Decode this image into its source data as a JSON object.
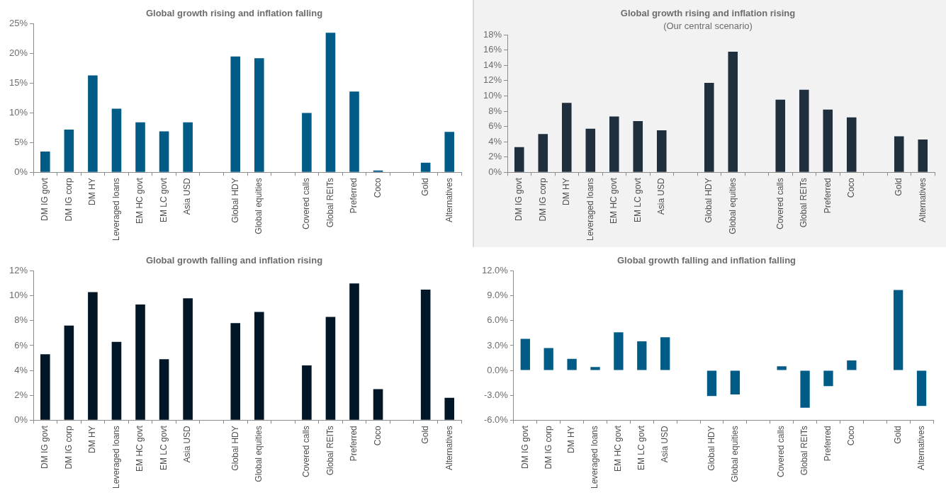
{
  "chart_data": [
    {
      "type": "bar",
      "title": "Global growth rising and inflation falling",
      "categories": [
        "DM IG govt",
        "DM IG corp",
        "DM HY",
        "Leveraged loans",
        "EM HC govt",
        "EM LC govt",
        "Asia USD",
        null,
        "Global HDY",
        "Global equities",
        null,
        "Covered calls",
        "Global REITs",
        "Preferred",
        "Coco",
        null,
        "Gold",
        "Alternatives"
      ],
      "values": [
        3.5,
        7.2,
        16.3,
        10.7,
        8.4,
        6.9,
        8.4,
        null,
        19.5,
        19.2,
        null,
        10.0,
        23.5,
        13.6,
        0.3,
        null,
        1.6,
        6.8
      ],
      "color": "#005b87",
      "ylim": [
        0,
        25
      ],
      "yticks": [
        {
          "value": 0,
          "label": "0%"
        },
        {
          "value": 5,
          "label": "5%"
        },
        {
          "value": 10,
          "label": "10%"
        },
        {
          "value": 15,
          "label": "15%"
        },
        {
          "value": 20,
          "label": "20%"
        },
        {
          "value": 25,
          "label": "25%"
        }
      ],
      "grid": false,
      "legend": false
    },
    {
      "type": "bar",
      "title": "Global growth rising and inflation rising",
      "subtitle": "(Our central scenario)",
      "categories": [
        "DM IG govt",
        "DM IG corp",
        "DM HY",
        "Leveraged loans",
        "EM HC govt",
        "EM LC govt",
        "Asia USD",
        null,
        "Global HDY",
        "Global equities",
        null,
        "Covered calls",
        "Global REITs",
        "Preferred",
        "Coco",
        null,
        "Gold",
        "Alternatives"
      ],
      "values": [
        3.3,
        5.0,
        9.1,
        5.7,
        7.3,
        6.7,
        5.5,
        null,
        11.7,
        15.8,
        null,
        9.5,
        10.8,
        8.2,
        7.2,
        null,
        4.7,
        4.3
      ],
      "color": "#1f2f3d",
      "ylim": [
        0,
        18
      ],
      "yticks": [
        {
          "value": 0,
          "label": "0%"
        },
        {
          "value": 2,
          "label": "2%"
        },
        {
          "value": 4,
          "label": "4%"
        },
        {
          "value": 6,
          "label": "6%"
        },
        {
          "value": 8,
          "label": "8%"
        },
        {
          "value": 10,
          "label": "10%"
        },
        {
          "value": 12,
          "label": "12%"
        },
        {
          "value": 14,
          "label": "14%"
        },
        {
          "value": 16,
          "label": "16%"
        },
        {
          "value": 18,
          "label": "18%"
        }
      ],
      "grid": false,
      "legend": false
    },
    {
      "type": "bar",
      "title": "Global growth falling and inflation rising",
      "categories": [
        "DM IG govt",
        "DM IG corp",
        "DM HY",
        "Leveraged loans",
        "EM HC govt",
        "EM LC govt",
        "Asia USD",
        null,
        "Global HDY",
        "Global equities",
        null,
        "Covered calls",
        "Global REITs",
        "Preferred",
        "Coco",
        null,
        "Gold",
        "Alternatives"
      ],
      "values": [
        5.3,
        7.6,
        10.3,
        6.3,
        9.3,
        4.9,
        9.8,
        null,
        7.8,
        8.7,
        null,
        4.4,
        8.3,
        11.0,
        2.5,
        null,
        10.5,
        1.8
      ],
      "color": "#011627",
      "ylim": [
        0,
        12
      ],
      "yticks": [
        {
          "value": 0,
          "label": "0%"
        },
        {
          "value": 2,
          "label": "2%"
        },
        {
          "value": 4,
          "label": "4%"
        },
        {
          "value": 6,
          "label": "6%"
        },
        {
          "value": 8,
          "label": "8%"
        },
        {
          "value": 10,
          "label": "10%"
        },
        {
          "value": 12,
          "label": "12%"
        }
      ],
      "grid": false,
      "legend": false
    },
    {
      "type": "bar",
      "title": "Global growth falling and inflation falling",
      "categories": [
        "DM IG govt",
        "DM IG corp",
        "DM HY",
        "Leveraged loans",
        "EM HC govt",
        "EM LC govt",
        "Asia USD",
        null,
        "Global HDY",
        "Global equities",
        null,
        "Covered calls",
        "Global REITs",
        "Preferred",
        "Coco",
        null,
        "Gold",
        "Alternatives"
      ],
      "values": [
        3.8,
        2.7,
        1.4,
        0.4,
        4.6,
        3.5,
        4.0,
        null,
        -3.1,
        -2.9,
        null,
        0.5,
        -4.5,
        -1.9,
        1.2,
        null,
        9.7,
        -4.3
      ],
      "color": "#005b87",
      "ylim": [
        -6,
        12
      ],
      "yticks": [
        {
          "value": -6,
          "label": "-6.0%"
        },
        {
          "value": -3,
          "label": "-3.0%"
        },
        {
          "value": 0,
          "label": "0.0%"
        },
        {
          "value": 3,
          "label": "3.0%"
        },
        {
          "value": 6,
          "label": "6.0%"
        },
        {
          "value": 9,
          "label": "9.0%"
        },
        {
          "value": 12,
          "label": "12.0%"
        }
      ],
      "grid": false,
      "legend": false
    }
  ]
}
